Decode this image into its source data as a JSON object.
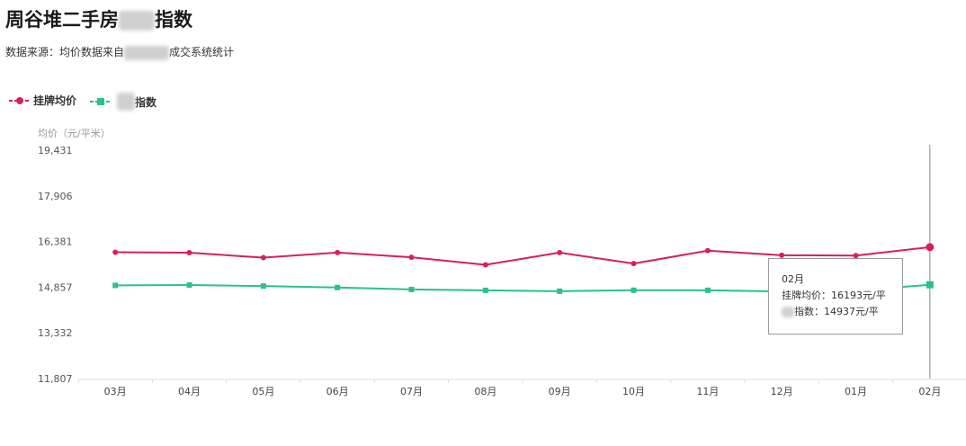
{
  "header": {
    "title_part1": "周谷堆二手房",
    "title_part2": "指数",
    "subtitle_part1": "数据来源：均价数据来自",
    "subtitle_part2": "成交系统统计"
  },
  "legend": {
    "items": [
      {
        "label": "挂牌均价",
        "color": "#d81e5b",
        "marker": "circle"
      },
      {
        "label": "指数",
        "color": "#29c287",
        "marker": "square"
      }
    ]
  },
  "tooltip": {
    "month": "02月",
    "line1_label": "挂牌均价：",
    "line1_value": "16193元/平",
    "line2_label": "指数：",
    "line2_value": "14937元/平"
  },
  "chart_data": {
    "type": "line",
    "ylabel": "均价（元/平米）",
    "categories": [
      "03月",
      "04月",
      "05月",
      "06月",
      "07月",
      "08月",
      "09月",
      "10月",
      "11月",
      "12月",
      "01月",
      "02月"
    ],
    "yticks": [
      "11,807",
      "13,332",
      "14,857",
      "16,381",
      "17,906",
      "19,431"
    ],
    "ylim": [
      11807,
      19431
    ],
    "grid": false,
    "legend_position": "top-left",
    "series": [
      {
        "name": "挂牌均价",
        "color": "#d81e5b",
        "marker": "circle",
        "values": [
          16023,
          16008,
          15843,
          16014,
          15856,
          15604,
          16011,
          15644,
          16076,
          15924,
          15912,
          16193
        ]
      },
      {
        "name": "指数",
        "color": "#29c287",
        "marker": "square",
        "values": [
          14916,
          14930,
          14895,
          14846,
          14781,
          14752,
          14723,
          14755,
          14754,
          14716,
          14741,
          14937
        ]
      }
    ],
    "highlight_category": "02月"
  }
}
